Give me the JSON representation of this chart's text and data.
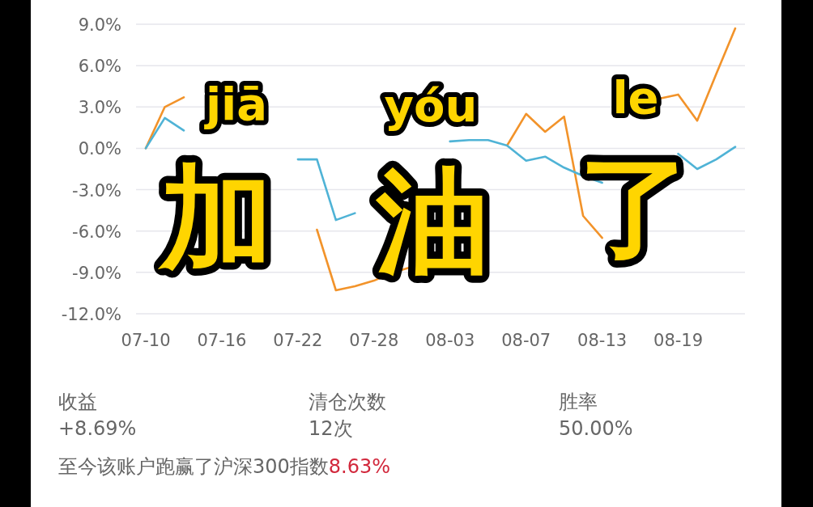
{
  "chart_data": {
    "type": "line",
    "categories": [
      "07-10",
      null,
      null,
      null,
      "07-16",
      null,
      null,
      null,
      "07-22",
      null,
      null,
      null,
      "07-28",
      null,
      null,
      null,
      "08-03",
      null,
      null,
      null,
      "08-07",
      null,
      null,
      null,
      "08-13",
      null,
      null,
      null,
      "08-19",
      null,
      null,
      null
    ],
    "series": [
      {
        "color": "#f2932a",
        "values": [
          0,
          3.0,
          3.7,
          null,
          null,
          null,
          null,
          null,
          null,
          -5.9,
          -10.3,
          -10.0,
          -9.6,
          -9.0,
          -8.6,
          null,
          null,
          null,
          null,
          0.2,
          2.5,
          1.2,
          2.3,
          -4.9,
          -6.5,
          null,
          null,
          3.6,
          3.9,
          2.0,
          5.4,
          8.7
        ]
      },
      {
        "color": "#4fb3d6",
        "values": [
          0,
          2.2,
          1.3,
          null,
          null,
          null,
          null,
          null,
          -0.8,
          -0.8,
          -5.2,
          -4.7,
          null,
          null,
          null,
          null,
          0.5,
          0.6,
          0.6,
          0.2,
          -0.9,
          -0.6,
          -1.4,
          -2.0,
          -2.5,
          null,
          null,
          null,
          -0.4,
          -1.5,
          -0.8,
          0.1
        ]
      }
    ],
    "ylim": [
      -12,
      9
    ],
    "yticks": [
      {
        "value": -12,
        "label": "-12.0%"
      },
      {
        "value": -9,
        "label": "-9.0%"
      },
      {
        "value": -6,
        "label": "-6.0%"
      },
      {
        "value": -3,
        "label": "-3.0%"
      },
      {
        "value": 0,
        "label": "0.0%"
      },
      {
        "value": 3,
        "label": "3.0%"
      },
      {
        "value": 6,
        "label": "6.0%"
      },
      {
        "value": 9,
        "label": "9.0%"
      }
    ],
    "grid": "y",
    "marker": "none",
    "line_style": "solid",
    "annotations": [
      "jiā",
      "加",
      "yóu",
      "油",
      "le",
      "了",
      "收益",
      "+8.69%",
      "清仓次数",
      "12次",
      "胜率",
      "50.00%",
      "至今该账户跑赢了沪深300指数",
      "8.63%"
    ]
  }
}
